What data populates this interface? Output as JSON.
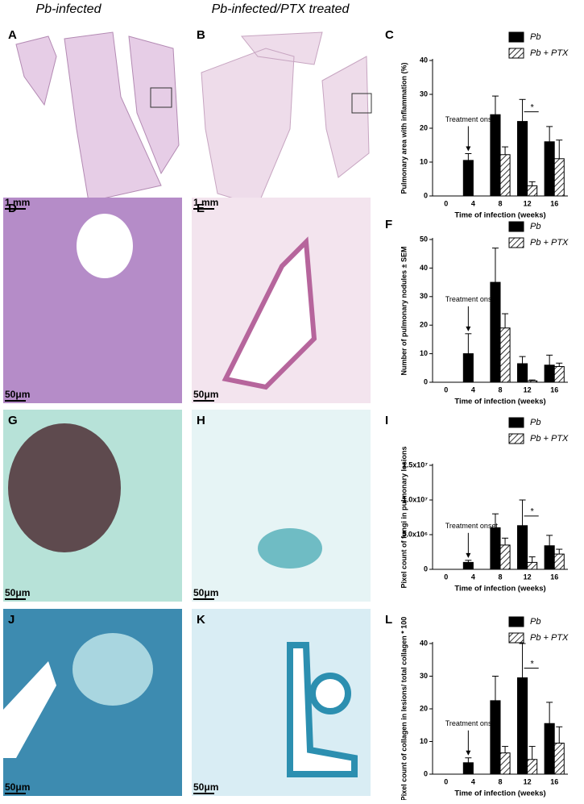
{
  "headers": [
    "Pb-infected",
    "Pb-infected/PTX treated"
  ],
  "panels": [
    {
      "letter": "A",
      "scale": "1 mm"
    },
    {
      "letter": "B",
      "scale": "1 mm"
    },
    {
      "letter": "D",
      "scale": "50μm"
    },
    {
      "letter": "E",
      "scale": "50μm"
    },
    {
      "letter": "G",
      "scale": "50μm"
    },
    {
      "letter": "H",
      "scale": "50μm"
    },
    {
      "letter": "J",
      "scale": "50μm"
    },
    {
      "letter": "K",
      "scale": "50μm"
    }
  ],
  "chart_data": [
    {
      "type": "bar",
      "panel": "C",
      "y_label": "Pulmonary area with inflammation (%)",
      "x_label": "Time of infection (weeks)",
      "annotation": "Treatment onset",
      "significance": "*",
      "categories": [
        "0",
        "4",
        "8",
        "12",
        "16"
      ],
      "series": [
        {
          "name": "Pb",
          "color": "#000000",
          "values": [
            null,
            10.5,
            24,
            22,
            16
          ],
          "errors": [
            null,
            2,
            5.5,
            6.5,
            4.5
          ]
        },
        {
          "name": "Pb + PTX",
          "color": "#ffffff",
          "pattern": "hatch",
          "values": [
            null,
            null,
            12.2,
            3,
            11
          ],
          "errors": [
            null,
            null,
            2.3,
            1.2,
            5.5
          ]
        }
      ],
      "ylim": [
        0,
        40
      ],
      "yticks": [
        0,
        10,
        20,
        30,
        40
      ]
    },
    {
      "type": "bar",
      "panel": "F",
      "y_label": "Number of pulmonary nodules ± SEM",
      "x_label": "Time of infection (weeks)",
      "annotation": "Treatment onset",
      "categories": [
        "0",
        "4",
        "8",
        "12",
        "16"
      ],
      "series": [
        {
          "name": "Pb",
          "color": "#000000",
          "values": [
            null,
            10,
            35,
            6.5,
            6
          ],
          "errors": [
            null,
            7,
            12,
            2.5,
            3.5
          ]
        },
        {
          "name": "Pb + PTX",
          "color": "#ffffff",
          "pattern": "hatch",
          "values": [
            null,
            null,
            19,
            0.5,
            5.5
          ],
          "errors": [
            null,
            null,
            5,
            0.3,
            1.2
          ]
        }
      ],
      "ylim": [
        0,
        50
      ],
      "yticks": [
        0,
        10,
        20,
        30,
        40,
        50
      ]
    },
    {
      "type": "bar",
      "panel": "I",
      "y_label": "Pixel count of fungi in pulmonary lesions",
      "x_label": "Time of infection (weeks)",
      "annotation": "Treatment onset",
      "significance": "*",
      "categories": [
        "0",
        "4",
        "8",
        "12",
        "16"
      ],
      "series": [
        {
          "name": "Pb",
          "color": "#000000",
          "values": [
            null,
            1000000,
            6000000,
            6300000,
            3400000
          ],
          "errors": [
            null,
            300000,
            2000000,
            3700000,
            1500000
          ]
        },
        {
          "name": "Pb + PTX",
          "color": "#ffffff",
          "pattern": "hatch",
          "values": [
            null,
            null,
            3500000,
            1000000,
            2200000
          ],
          "errors": [
            null,
            null,
            1000000,
            800000,
            700000
          ]
        }
      ],
      "ylim": [
        0,
        15000000
      ],
      "yticks": [
        0,
        {
          "value": 5000000,
          "label": "5.0x10⁶"
        },
        {
          "value": 10000000,
          "label": "1.0x10⁷"
        },
        {
          "value": 15000000,
          "label": "1.5x10⁷"
        }
      ]
    },
    {
      "type": "bar",
      "panel": "L",
      "y_label": "Pixel count of collagen in lesions/ total collagen * 100",
      "x_label": "Time of infection (weeks)",
      "annotation": "Treatment onset",
      "significance": "*",
      "categories": [
        "0",
        "4",
        "8",
        "12",
        "16"
      ],
      "series": [
        {
          "name": "Pb",
          "color": "#000000",
          "values": [
            null,
            3.5,
            22.5,
            29.5,
            15.5
          ],
          "errors": [
            null,
            1.5,
            7.5,
            10.5,
            6.5
          ]
        },
        {
          "name": "Pb + PTX",
          "color": "#ffffff",
          "pattern": "hatch",
          "values": [
            null,
            null,
            6.5,
            4.5,
            9.5
          ],
          "errors": [
            null,
            null,
            2,
            4,
            5
          ]
        }
      ],
      "ylim": [
        0,
        40
      ],
      "yticks": [
        0,
        10,
        20,
        30,
        40
      ]
    }
  ]
}
